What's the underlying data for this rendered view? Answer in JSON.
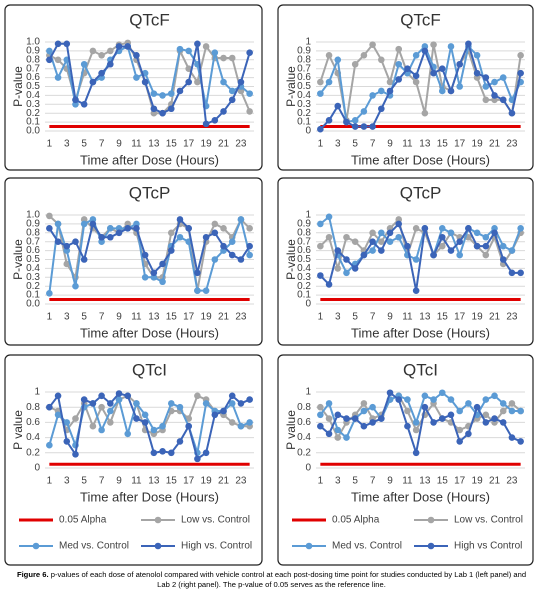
{
  "chart_data": [
    {
      "type": "line",
      "title": "QTcF",
      "y_label": "P-value",
      "x_label": "Time after Dose (Hours)",
      "x": [
        1,
        2,
        3,
        4,
        5,
        6,
        7,
        8,
        9,
        10,
        11,
        12,
        13,
        14,
        15,
        16,
        17,
        18,
        19,
        20,
        21,
        22,
        23,
        24
      ],
      "xlim": [
        0.5,
        24.5
      ],
      "xticks": [
        1,
        3,
        5,
        7,
        9,
        11,
        13,
        15,
        17,
        19,
        21,
        23
      ],
      "ylim": [
        0,
        1
      ],
      "yticks": [
        {
          "value": 0,
          "label": "0.0"
        },
        0.1,
        0.2,
        0.3,
        0.4,
        0.5,
        0.6,
        0.7,
        0.8,
        0.9,
        {
          "value": 1,
          "label": "1.0"
        }
      ],
      "grid": true,
      "series": [
        {
          "color": "#e00000",
          "marker": false,
          "values": [
            0.05,
            0.05,
            0.05,
            0.05,
            0.05,
            0.05,
            0.05,
            0.05,
            0.05,
            0.05,
            0.05,
            0.05,
            0.05,
            0.05,
            0.05,
            0.05,
            0.05,
            0.05,
            0.05,
            0.05,
            0.05,
            0.05,
            0.05,
            0.05
          ]
        },
        {
          "color": "#a5a5a5",
          "marker": true,
          "values": [
            0.85,
            0.8,
            0.7,
            0.35,
            0.65,
            0.9,
            0.85,
            0.9,
            0.97,
            0.99,
            0.8,
            0.55,
            0.2,
            0.2,
            0.3,
            0.9,
            0.7,
            0.55,
            0.95,
            0.82,
            0.82,
            0.82,
            0.45,
            0.22
          ]
        },
        {
          "color": "#5b9bd5",
          "marker": true,
          "values": [
            0.9,
            0.6,
            0.8,
            0.3,
            0.75,
            0.55,
            0.6,
            0.8,
            0.9,
            0.95,
            0.6,
            0.65,
            0.42,
            0.4,
            0.42,
            0.92,
            0.9,
            0.75,
            0.28,
            0.88,
            0.55,
            0.45,
            0.5,
            0.42
          ]
        },
        {
          "color": "#3b64b8",
          "marker": true,
          "values": [
            0.8,
            0.98,
            0.98,
            0.35,
            0.3,
            0.55,
            0.65,
            0.75,
            0.95,
            0.95,
            0.85,
            0.55,
            0.25,
            0.2,
            0.25,
            0.45,
            0.55,
            0.98,
            0.08,
            0.12,
            0.22,
            0.35,
            0.55,
            0.88
          ]
        }
      ]
    },
    {
      "type": "line",
      "title": "QTcF",
      "y_label": "P-value",
      "x_label": "Time after Dose (Hours)",
      "x": [
        1,
        2,
        3,
        4,
        5,
        6,
        7,
        8,
        9,
        10,
        11,
        12,
        13,
        14,
        15,
        16,
        17,
        18,
        19,
        20,
        21,
        22,
        23,
        24
      ],
      "xlim": [
        0.5,
        24.5
      ],
      "xticks": [
        1,
        3,
        5,
        7,
        9,
        11,
        13,
        15,
        17,
        19,
        21,
        23
      ],
      "ylim": [
        0,
        1
      ],
      "yticks": [
        0,
        0.1,
        0.2,
        0.3,
        0.4,
        0.5,
        0.6,
        0.7,
        0.8,
        0.9,
        1
      ],
      "grid": true,
      "series": [
        {
          "color": "#e00000",
          "marker": false,
          "values": [
            0.05,
            0.05,
            0.05,
            0.05,
            0.05,
            0.05,
            0.05,
            0.05,
            0.05,
            0.05,
            0.05,
            0.05,
            0.05,
            0.05,
            0.05,
            0.05,
            0.05,
            0.05,
            0.05,
            0.05,
            0.05,
            0.05,
            0.05,
            0.05
          ]
        },
        {
          "color": "#a5a5a5",
          "marker": true,
          "values": [
            0.55,
            0.85,
            0.65,
            0.12,
            0.75,
            0.85,
            0.97,
            0.8,
            0.55,
            0.92,
            0.65,
            0.55,
            0.2,
            0.97,
            0.5,
            0.45,
            0.75,
            0.9,
            0.6,
            0.35,
            0.35,
            0.35,
            0.2,
            0.85
          ]
        },
        {
          "color": "#5b9bd5",
          "marker": true,
          "values": [
            0.42,
            0.55,
            0.8,
            0.1,
            0.12,
            0.22,
            0.4,
            0.45,
            0.4,
            0.75,
            0.65,
            0.85,
            0.95,
            0.72,
            0.45,
            0.95,
            0.5,
            0.95,
            0.85,
            0.5,
            0.55,
            0.6,
            0.35,
            0.55
          ]
        },
        {
          "color": "#3b64b8",
          "marker": true,
          "values": [
            0.02,
            0.12,
            0.28,
            0.1,
            0.05,
            0.05,
            0.05,
            0.25,
            0.45,
            0.58,
            0.7,
            0.62,
            0.9,
            0.65,
            0.7,
            0.45,
            0.75,
            0.98,
            0.65,
            0.6,
            0.4,
            0.35,
            0.2,
            0.65
          ]
        }
      ]
    },
    {
      "type": "line",
      "title": "QTcP",
      "y_label": "P-value",
      "x_label": "Time after Dose (Hours)",
      "x": [
        1,
        2,
        3,
        4,
        5,
        6,
        7,
        8,
        9,
        10,
        11,
        12,
        13,
        14,
        15,
        16,
        17,
        18,
        19,
        20,
        21,
        22,
        23,
        24
      ],
      "xlim": [
        0.5,
        24.5
      ],
      "xticks": [
        1,
        3,
        5,
        7,
        9,
        11,
        13,
        15,
        17,
        19,
        21,
        23
      ],
      "ylim": [
        0,
        1
      ],
      "yticks": [
        {
          "value": 0,
          "label": "0.0"
        },
        0.1,
        0.2,
        0.3,
        0.4,
        0.5,
        0.6,
        0.7,
        0.8,
        0.9,
        {
          "value": 1,
          "label": "1.0"
        }
      ],
      "grid": true,
      "series": [
        {
          "color": "#e00000",
          "marker": false,
          "values": [
            0.05,
            0.05,
            0.05,
            0.05,
            0.05,
            0.05,
            0.05,
            0.05,
            0.05,
            0.05,
            0.05,
            0.05,
            0.05,
            0.05,
            0.05,
            0.05,
            0.05,
            0.05,
            0.05,
            0.05,
            0.05,
            0.05,
            0.05,
            0.05
          ]
        },
        {
          "color": "#a5a5a5",
          "marker": true,
          "values": [
            0.99,
            0.9,
            0.45,
            0.3,
            0.95,
            0.85,
            0.75,
            0.85,
            0.8,
            0.9,
            0.8,
            0.45,
            0.3,
            0.3,
            0.8,
            0.9,
            0.85,
            0.15,
            0.7,
            0.9,
            0.85,
            0.75,
            0.95,
            0.85
          ]
        },
        {
          "color": "#5b9bd5",
          "marker": true,
          "values": [
            0.12,
            0.9,
            0.6,
            0.2,
            0.9,
            0.95,
            0.7,
            0.85,
            0.85,
            0.85,
            0.9,
            0.3,
            0.3,
            0.25,
            0.65,
            0.75,
            0.7,
            0.15,
            0.15,
            0.5,
            0.6,
            0.7,
            0.95,
            0.55
          ]
        },
        {
          "color": "#3b64b8",
          "marker": true,
          "values": [
            0.85,
            0.7,
            0.65,
            0.7,
            0.5,
            0.9,
            0.75,
            0.75,
            0.8,
            0.85,
            0.85,
            0.55,
            0.35,
            0.45,
            0.6,
            0.95,
            0.85,
            0.35,
            0.75,
            0.8,
            0.65,
            0.55,
            0.5,
            0.65
          ]
        }
      ]
    },
    {
      "type": "line",
      "title": "QTcP",
      "y_label": "P-value",
      "x_label": "Time after Dose (Hours)",
      "x": [
        1,
        2,
        3,
        4,
        5,
        6,
        7,
        8,
        9,
        10,
        11,
        12,
        13,
        14,
        15,
        16,
        17,
        18,
        19,
        20,
        21,
        22,
        23,
        24
      ],
      "xlim": [
        0.5,
        24.5
      ],
      "xticks": [
        1,
        3,
        5,
        7,
        9,
        11,
        13,
        15,
        17,
        19,
        21,
        23
      ],
      "ylim": [
        0,
        1
      ],
      "yticks": [
        0,
        0.1,
        0.2,
        0.3,
        0.4,
        0.5,
        0.6,
        0.7,
        0.8,
        0.9,
        1
      ],
      "grid": true,
      "series": [
        {
          "color": "#e00000",
          "marker": false,
          "values": [
            0.05,
            0.05,
            0.05,
            0.05,
            0.05,
            0.05,
            0.05,
            0.05,
            0.05,
            0.05,
            0.05,
            0.05,
            0.05,
            0.05,
            0.05,
            0.05,
            0.05,
            0.05,
            0.05,
            0.05,
            0.05,
            0.05,
            0.05,
            0.05
          ]
        },
        {
          "color": "#a5a5a5",
          "marker": true,
          "values": [
            0.65,
            0.75,
            0.4,
            0.75,
            0.7,
            0.6,
            0.8,
            0.7,
            0.85,
            0.95,
            0.55,
            0.85,
            0.8,
            0.55,
            0.65,
            0.8,
            0.75,
            0.75,
            0.65,
            0.55,
            0.75,
            0.45,
            0.6,
            0.8
          ]
        },
        {
          "color": "#5b9bd5",
          "marker": true,
          "values": [
            0.9,
            0.98,
            0.55,
            0.35,
            0.45,
            0.55,
            0.6,
            0.8,
            0.7,
            0.75,
            0.55,
            0.5,
            0.85,
            0.55,
            0.85,
            0.8,
            0.55,
            0.85,
            0.8,
            0.75,
            0.85,
            0.65,
            0.6,
            0.85
          ]
        },
        {
          "color": "#3b64b8",
          "marker": true,
          "values": [
            0.32,
            0.22,
            0.6,
            0.5,
            0.4,
            0.55,
            0.7,
            0.6,
            0.8,
            0.9,
            0.65,
            0.15,
            0.85,
            0.55,
            0.75,
            0.6,
            0.7,
            0.85,
            0.65,
            0.65,
            0.8,
            0.5,
            0.35,
            0.35
          ]
        }
      ]
    },
    {
      "type": "line",
      "title": "QTcI",
      "y_label": "P value",
      "x_label": "Time after Dose (Hours)",
      "x": [
        1,
        2,
        3,
        4,
        5,
        6,
        7,
        8,
        9,
        10,
        11,
        12,
        13,
        14,
        15,
        16,
        17,
        18,
        19,
        20,
        21,
        22,
        23,
        24
      ],
      "xlim": [
        0.5,
        24.5
      ],
      "xticks": [
        1,
        3,
        5,
        7,
        9,
        11,
        13,
        15,
        17,
        19,
        21,
        23
      ],
      "ylim": [
        0,
        1
      ],
      "yticks": [
        0,
        0.2,
        0.4,
        0.6,
        0.8,
        1
      ],
      "grid": true,
      "series": [
        {
          "name": "0.05 Alpha",
          "color": "#e00000",
          "marker": false,
          "values": [
            0.05,
            0.05,
            0.05,
            0.05,
            0.05,
            0.05,
            0.05,
            0.05,
            0.05,
            0.05,
            0.05,
            0.05,
            0.05,
            0.05,
            0.05,
            0.05,
            0.05,
            0.05,
            0.05,
            0.05,
            0.05,
            0.05,
            0.05,
            0.05
          ]
        },
        {
          "name": "Low vs. Control",
          "color": "#a5a5a5",
          "marker": true,
          "values": [
            0.8,
            0.75,
            0.5,
            0.65,
            0.85,
            0.55,
            0.8,
            0.6,
            0.9,
            0.95,
            0.85,
            0.5,
            0.45,
            0.5,
            0.75,
            0.75,
            0.65,
            0.95,
            0.9,
            0.75,
            0.7,
            0.6,
            0.55,
            0.55
          ]
        },
        {
          "name": "Med vs. Control",
          "color": "#5b9bd5",
          "marker": true,
          "values": [
            0.3,
            0.7,
            0.6,
            0.3,
            0.8,
            0.85,
            0.5,
            0.75,
            0.9,
            0.45,
            0.85,
            0.7,
            0.5,
            0.55,
            0.85,
            0.8,
            0.55,
            0.2,
            0.85,
            0.75,
            0.75,
            0.85,
            0.55,
            0.6
          ]
        },
        {
          "name": "High vs. Control",
          "color": "#3b64b8",
          "marker": true,
          "values": [
            0.8,
            0.95,
            0.35,
            0.18,
            0.9,
            0.85,
            0.95,
            0.85,
            0.98,
            0.95,
            0.65,
            0.6,
            0.2,
            0.22,
            0.2,
            0.35,
            0.55,
            0.12,
            0.2,
            0.7,
            0.75,
            0.95,
            0.85,
            0.9
          ]
        }
      ]
    },
    {
      "type": "line",
      "title": "QTcI",
      "y_label": "P value",
      "x_label": "Time after Dose (Hours)",
      "x": [
        1,
        2,
        3,
        4,
        5,
        6,
        7,
        8,
        9,
        10,
        11,
        12,
        13,
        14,
        15,
        16,
        17,
        18,
        19,
        20,
        21,
        22,
        23,
        24
      ],
      "xlim": [
        0.5,
        24.5
      ],
      "xticks": [
        1,
        3,
        5,
        7,
        9,
        11,
        13,
        15,
        17,
        19,
        21,
        23
      ],
      "ylim": [
        0,
        1
      ],
      "yticks": [
        0,
        0.2,
        0.4,
        0.6,
        0.8,
        1
      ],
      "grid": true,
      "series": [
        {
          "name": "0.05 Alpha",
          "color": "#e00000",
          "marker": false,
          "values": [
            0.05,
            0.05,
            0.05,
            0.05,
            0.05,
            0.05,
            0.05,
            0.05,
            0.05,
            0.05,
            0.05,
            0.05,
            0.05,
            0.05,
            0.05,
            0.05,
            0.05,
            0.05,
            0.05,
            0.05,
            0.05,
            0.05,
            0.05,
            0.05
          ]
        },
        {
          "name": "Low vs. Control",
          "color": "#a5a5a5",
          "marker": true,
          "values": [
            0.8,
            0.65,
            0.4,
            0.6,
            0.7,
            0.85,
            0.65,
            0.7,
            0.9,
            0.95,
            0.75,
            0.5,
            0.7,
            0.85,
            0.65,
            0.6,
            0.5,
            0.55,
            0.65,
            0.7,
            0.6,
            0.75,
            0.85,
            0.75
          ]
        },
        {
          "name": "Med vs. Control",
          "color": "#5b9bd5",
          "marker": true,
          "values": [
            0.7,
            0.85,
            0.5,
            0.4,
            0.65,
            0.75,
            0.8,
            0.65,
            0.9,
            0.95,
            0.9,
            0.6,
            0.95,
            0.9,
            0.99,
            0.9,
            0.75,
            0.85,
            0.7,
            0.9,
            0.95,
            0.85,
            0.75,
            0.75
          ]
        },
        {
          "name": "High vs Control",
          "color": "#3b64b8",
          "marker": true,
          "values": [
            0.55,
            0.45,
            0.7,
            0.65,
            0.65,
            0.55,
            0.6,
            0.65,
            0.99,
            0.9,
            0.55,
            0.2,
            0.8,
            0.6,
            0.65,
            0.7,
            0.35,
            0.45,
            0.8,
            0.6,
            0.65,
            0.6,
            0.4,
            0.35
          ]
        }
      ]
    }
  ],
  "caption": {
    "label": "Figure 6.",
    "text": "p-values of each dose of atenolol compared with vehicle control at each post-dosing time point for studies conducted by Lab 1 (left panel) and Lab 2 (right panel). The p-value of 0.05 serves as the reference line."
  }
}
